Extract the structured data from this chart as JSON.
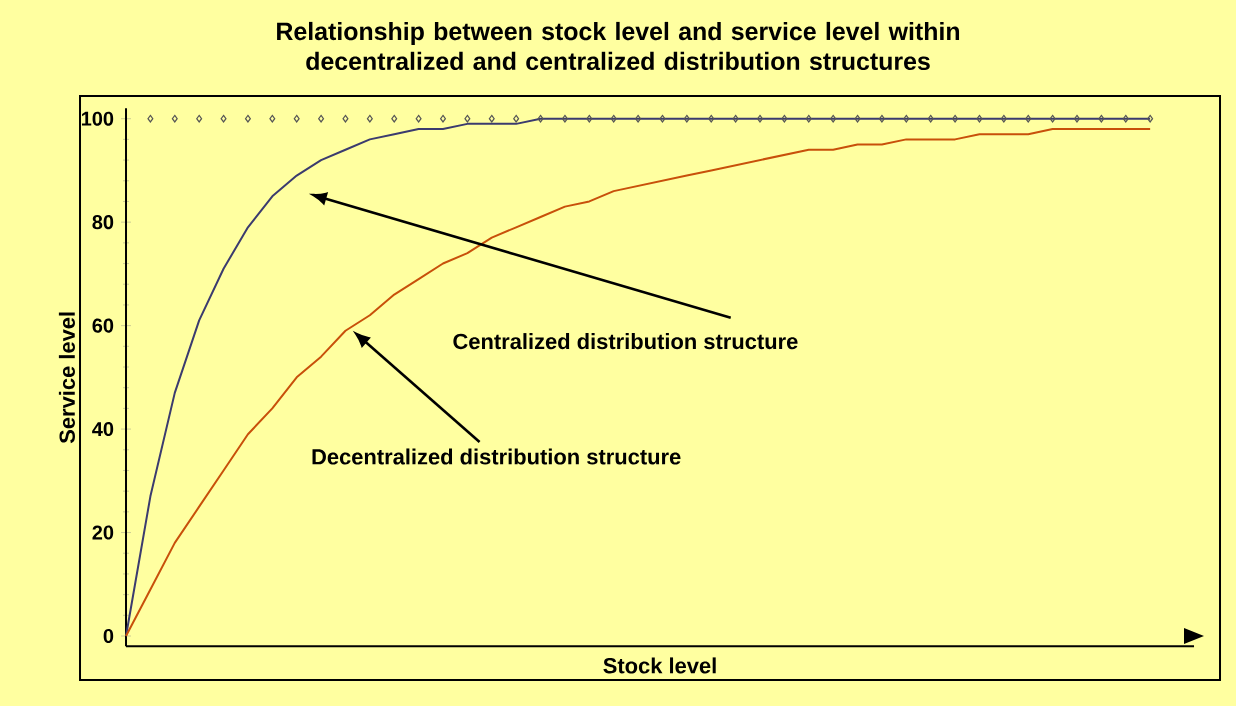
{
  "chart_data": {
    "type": "line",
    "title": "Relationship between stock level and service level within decentralized and centralized distribution structures",
    "xlabel": "Stock level",
    "ylabel": "Service level",
    "categories": [
      null,
      null,
      null,
      null,
      null,
      null,
      null,
      null,
      null,
      null,
      null,
      null,
      null,
      null,
      null,
      null,
      null,
      null,
      null,
      null,
      null,
      null,
      null,
      null,
      null,
      null,
      null,
      null,
      null,
      null,
      null,
      null,
      null,
      null,
      null,
      null,
      null,
      null,
      null,
      null,
      null,
      null,
      null
    ],
    "series": [
      {
        "color": "#3b3b6e",
        "marker": "none",
        "values": [
          0,
          27,
          47,
          61,
          71,
          79,
          85,
          89,
          92,
          94,
          96,
          97,
          98,
          98,
          99,
          99,
          99,
          100,
          100,
          100,
          100,
          100,
          100,
          100,
          100,
          100,
          100,
          100,
          100,
          100,
          100,
          100,
          100,
          100,
          100,
          100,
          100,
          100,
          100,
          100,
          100,
          100,
          100
        ]
      },
      {
        "color": "#c8500a",
        "marker": "none",
        "values": [
          0,
          9,
          18,
          25,
          32,
          39,
          44,
          50,
          54,
          59,
          62,
          66,
          69,
          72,
          74,
          77,
          79,
          81,
          83,
          84,
          86,
          87,
          88,
          89,
          90,
          91,
          92,
          93,
          94,
          94,
          95,
          95,
          96,
          96,
          96,
          97,
          97,
          97,
          98,
          98,
          98,
          98,
          98
        ]
      },
      {
        "type": "scatter",
        "color": "#555555",
        "marker": "diamond",
        "values": [
          null,
          100,
          100,
          100,
          100,
          100,
          100,
          100,
          100,
          100,
          100,
          100,
          100,
          100,
          100,
          100,
          100,
          100,
          100,
          100,
          100,
          100,
          100,
          100,
          100,
          100,
          100,
          100,
          100,
          100,
          100,
          100,
          100,
          100,
          100,
          100,
          100,
          100,
          100,
          100,
          100,
          100,
          100
        ]
      }
    ],
    "ylim": [
      -2,
      102
    ],
    "yticks": [
      0,
      20,
      40,
      60,
      80,
      100
    ],
    "grid": false,
    "tick_labels": "y",
    "annotations": [
      "Centralized distribution structure",
      "Decentralized distribution structure"
    ]
  }
}
